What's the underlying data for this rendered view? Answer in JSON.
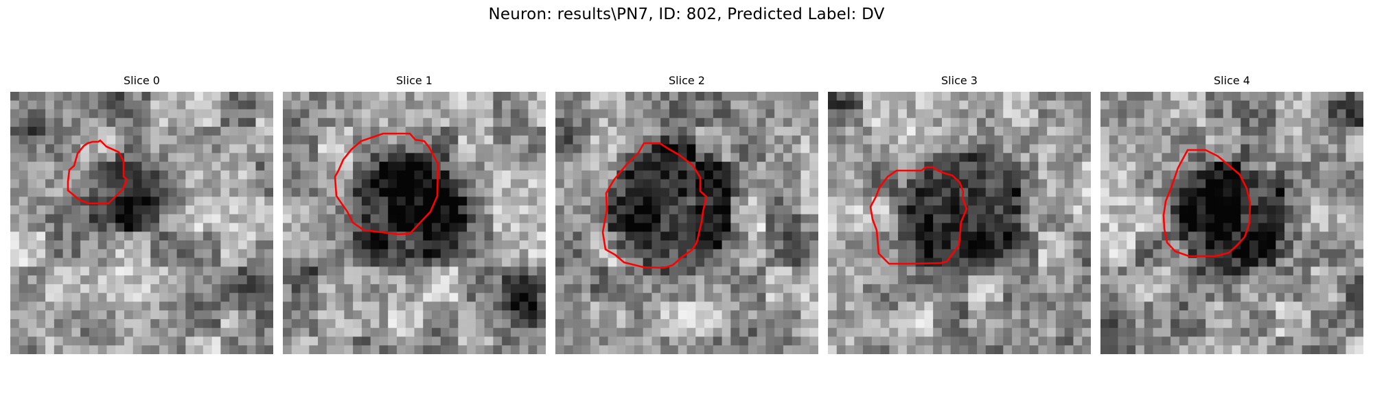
{
  "figure": {
    "title": "Neuron: results\\PN7, ID: 802, Predicted Label: DV"
  },
  "colors": {
    "contour": "#ff0000",
    "background": "#ffffff"
  },
  "panels": [
    {
      "title": "Slice 0",
      "image": "grayscale microscopy crop",
      "outline": "red contour"
    },
    {
      "title": "Slice 1",
      "image": "grayscale microscopy crop",
      "outline": "red contour"
    },
    {
      "title": "Slice 2",
      "image": "grayscale microscopy crop",
      "outline": "red contour"
    },
    {
      "title": "Slice 3",
      "image": "grayscale microscopy crop",
      "outline": "red contour"
    },
    {
      "title": "Slice 4",
      "image": "grayscale microscopy crop",
      "outline": "red contour"
    }
  ]
}
